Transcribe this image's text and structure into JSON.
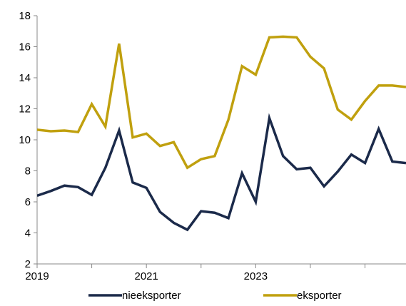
{
  "chart_data": {
    "type": "line",
    "title": "",
    "xlabel": "",
    "ylabel": "",
    "ylim": [
      2,
      18
    ],
    "yticks": [
      2,
      4,
      6,
      8,
      10,
      12,
      14,
      16,
      18
    ],
    "xlim": [
      2019.0,
      2025.75
    ],
    "xticks": [
      "2019",
      "2021",
      "2023"
    ],
    "grid": false,
    "legend_position": "bottom",
    "x": [
      2019.0,
      2019.25,
      2019.5,
      2019.75,
      2020.0,
      2020.25,
      2020.5,
      2020.75,
      2021.0,
      2021.25,
      2021.5,
      2021.75,
      2022.0,
      2022.25,
      2022.5,
      2022.75,
      2023.0,
      2023.25,
      2023.5,
      2023.75,
      2024.0,
      2024.25,
      2024.5,
      2024.75,
      2025.0,
      2025.25,
      2025.5,
      2025.75
    ],
    "series": [
      {
        "name": "nieeksporter",
        "color": "#1b2a4a",
        "values": [
          6.4,
          6.7,
          7.05,
          6.95,
          6.45,
          8.2,
          10.6,
          7.25,
          6.9,
          5.35,
          4.65,
          4.2,
          5.4,
          5.3,
          4.95,
          7.85,
          6.0,
          11.4,
          8.95,
          8.1,
          8.2,
          7.0,
          7.95,
          9.05,
          8.5,
          10.7,
          8.6,
          8.5
        ]
      },
      {
        "name": "eksporter",
        "color": "#c0a00e",
        "values": [
          10.65,
          10.55,
          10.6,
          10.5,
          12.3,
          10.85,
          16.2,
          10.15,
          10.4,
          9.6,
          9.85,
          8.2,
          8.75,
          8.95,
          11.3,
          14.75,
          14.2,
          16.6,
          16.65,
          16.6,
          15.35,
          14.6,
          11.95,
          11.3,
          12.5,
          13.5,
          13.5,
          13.4
        ]
      }
    ]
  }
}
